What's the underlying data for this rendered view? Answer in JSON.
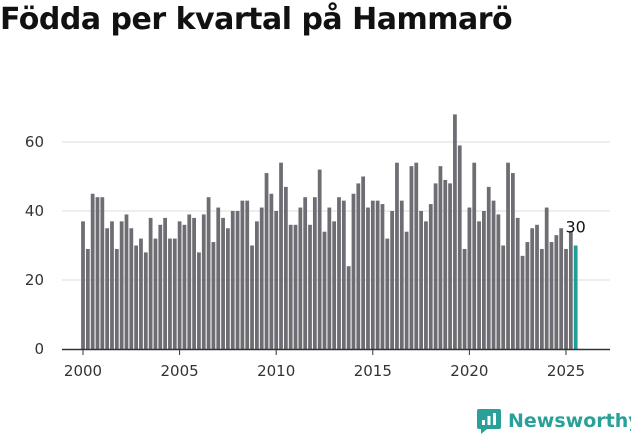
{
  "chart_data": {
    "type": "bar",
    "title": "Födda per kvartal på Hammarö",
    "xlabel": "",
    "ylabel": "",
    "ylim": [
      0,
      70
    ],
    "yticks": [
      0,
      20,
      40,
      60
    ],
    "xticks": [
      2000,
      2005,
      2010,
      2015,
      2020,
      2025
    ],
    "x_start": 2000.0,
    "x_step": 0.25,
    "grid": true,
    "colors": {
      "bar": "#6e6d73",
      "highlight": "#1f9e96",
      "grid": "#dddddd",
      "axis": "#333333"
    },
    "highlight_last": true,
    "last_value_label": "30",
    "values": [
      37,
      29,
      45,
      44,
      44,
      35,
      37,
      29,
      37,
      39,
      35,
      30,
      32,
      28,
      38,
      32,
      36,
      38,
      32,
      32,
      37,
      36,
      39,
      38,
      28,
      39,
      44,
      31,
      41,
      38,
      35,
      40,
      40,
      43,
      43,
      30,
      37,
      41,
      51,
      45,
      40,
      54,
      47,
      36,
      36,
      41,
      44,
      36,
      44,
      52,
      34,
      41,
      37,
      44,
      43,
      24,
      45,
      48,
      50,
      41,
      43,
      43,
      42,
      32,
      40,
      54,
      43,
      34,
      53,
      54,
      40,
      37,
      42,
      48,
      53,
      49,
      48,
      68,
      59,
      29,
      41,
      54,
      37,
      40,
      47,
      43,
      39,
      30,
      54,
      51,
      38,
      27,
      31,
      35,
      36,
      29,
      41,
      31,
      33,
      35,
      29,
      34,
      30
    ]
  },
  "brand": {
    "name": "Newsworthy",
    "icon": "newsworthy-logo-icon"
  }
}
